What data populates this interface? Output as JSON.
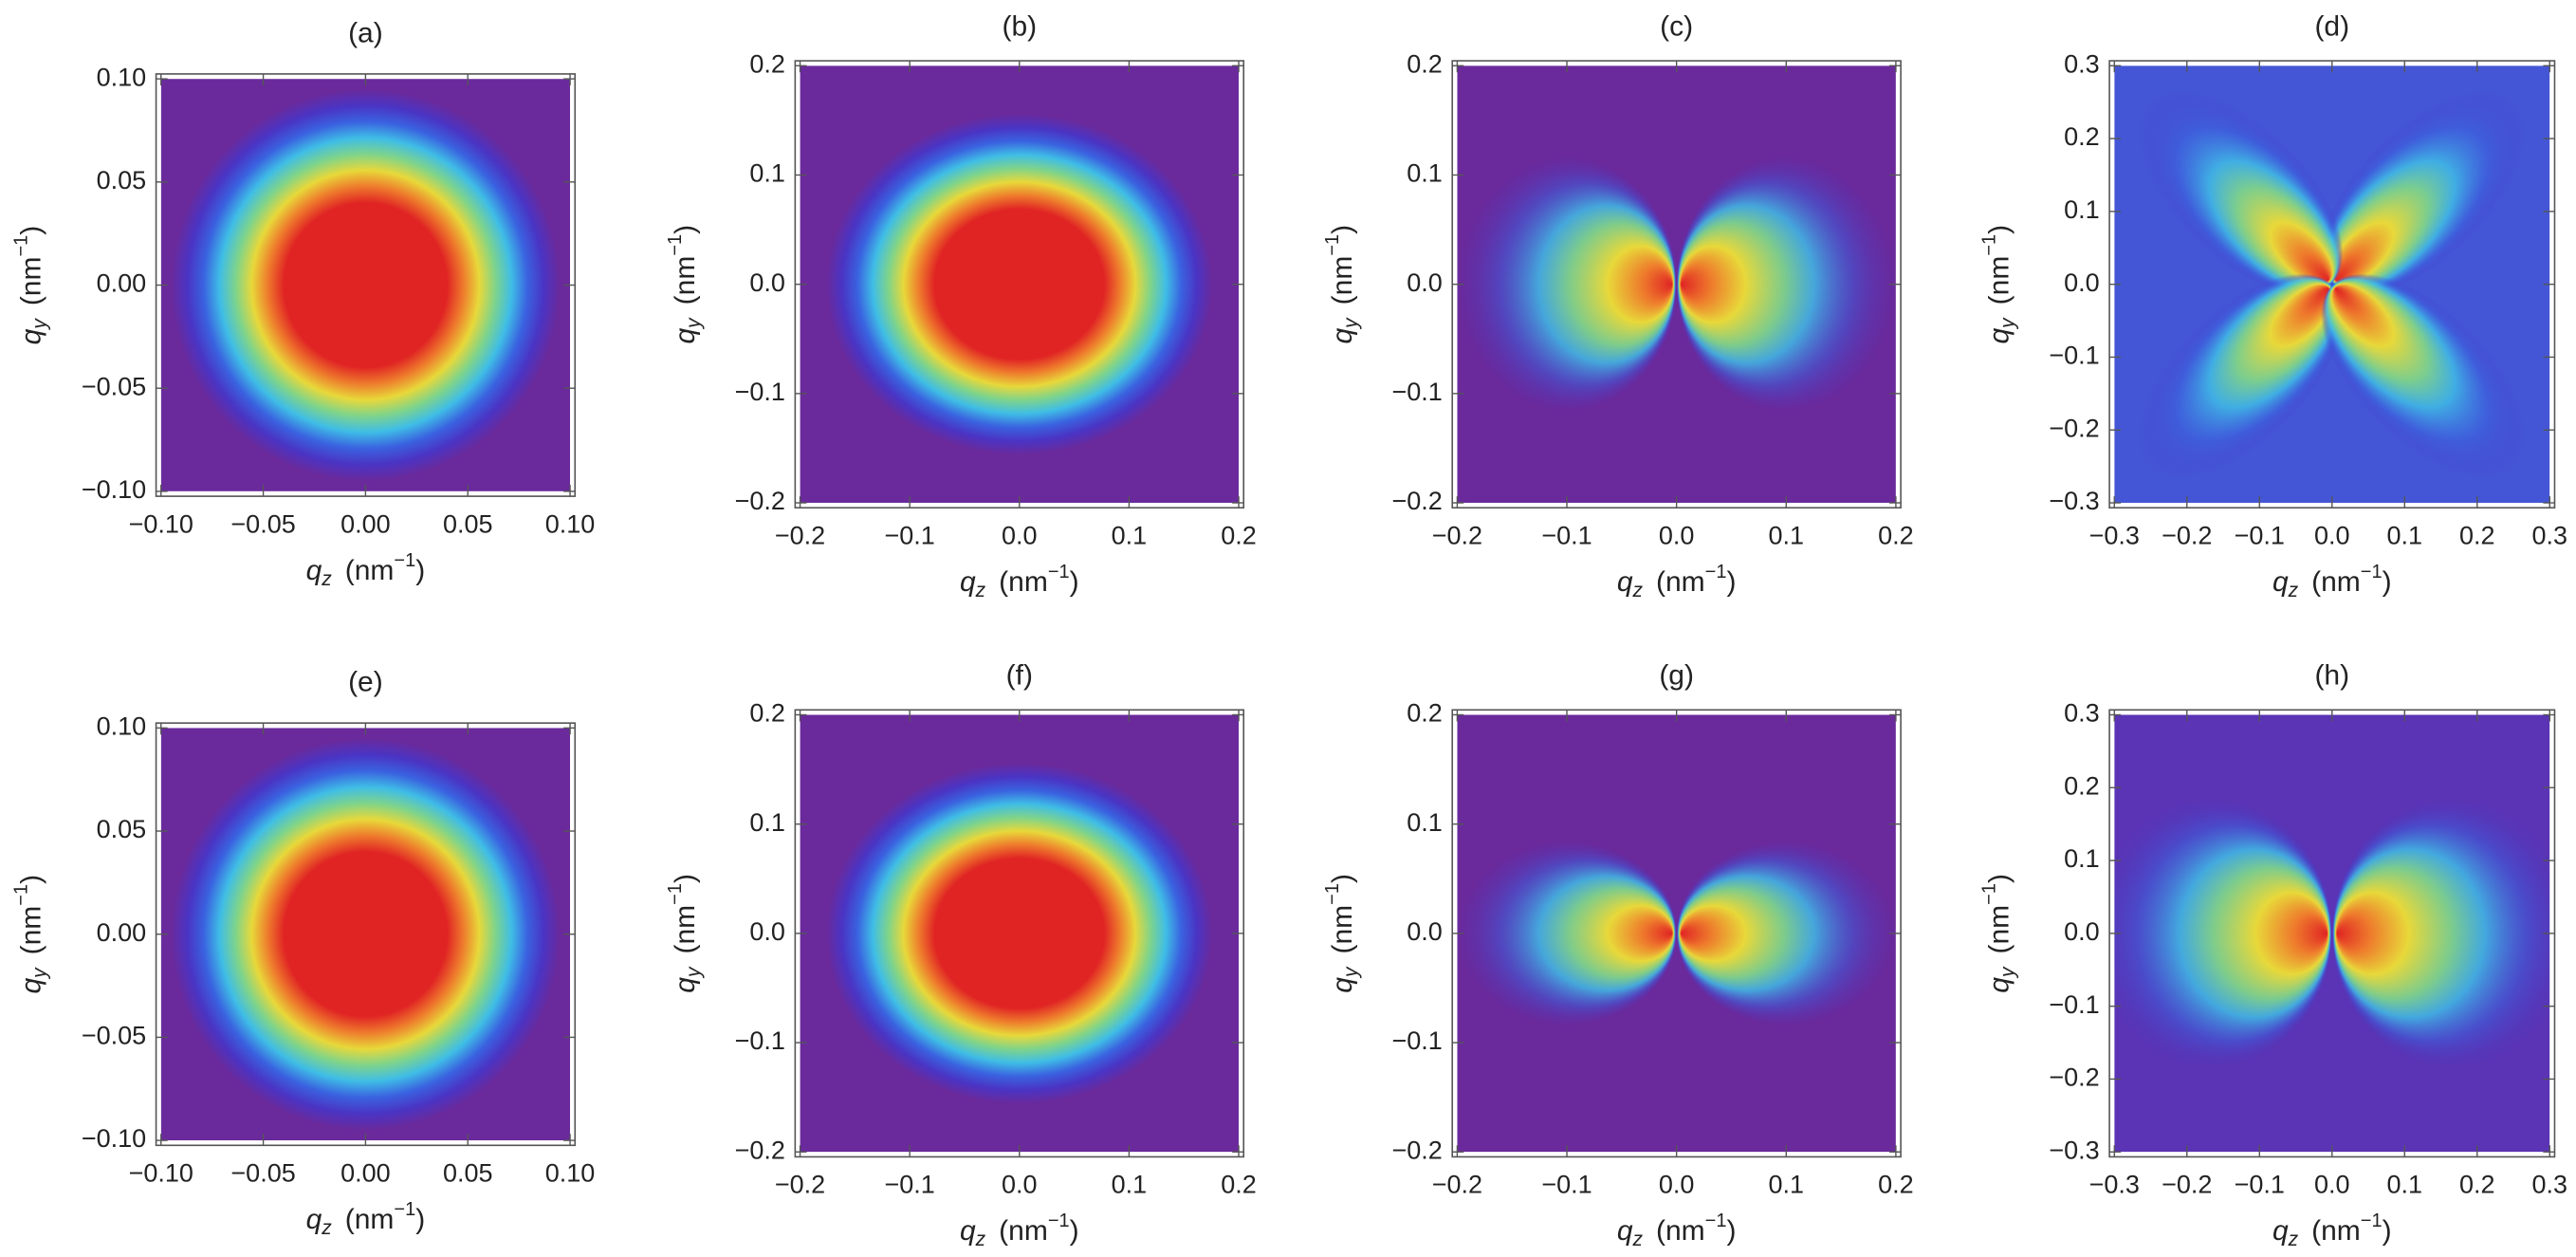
{
  "chart_data": [
    {
      "type": "density",
      "title": "(a)",
      "xlabel": {
        "symbol": "q",
        "subscript": "z",
        "unit": "(nm",
        "exponent": "−1",
        "close": ")"
      },
      "ylabel": {
        "symbol": "q",
        "subscript": "y",
        "unit": "(nm",
        "exponent": "−1",
        "close": ")"
      },
      "xlim": [
        -0.1,
        0.1
      ],
      "ylim": [
        -0.1,
        0.1
      ],
      "xticks": [
        {
          "value": -0.1,
          "label": "−0.10"
        },
        {
          "value": -0.05,
          "label": "−0.05"
        },
        {
          "value": 0,
          "label": "0.00"
        },
        {
          "value": 0.05,
          "label": "0.05"
        },
        {
          "value": 0.1,
          "label": "0.10"
        }
      ],
      "yticks": [
        {
          "value": -0.1,
          "label": "−0.10"
        },
        {
          "value": -0.05,
          "label": "−0.05"
        },
        {
          "value": 0,
          "label": "0.00"
        },
        {
          "value": 0.05,
          "label": "0.05"
        },
        {
          "value": 0.1,
          "label": "0.10"
        }
      ]
    },
    {
      "type": "density",
      "title": "(b)",
      "xlabel": {
        "symbol": "q",
        "subscript": "z",
        "unit": "(nm",
        "exponent": "−1",
        "close": ")"
      },
      "ylabel": {
        "symbol": "q",
        "subscript": "y",
        "unit": "(nm",
        "exponent": "−1",
        "close": ")"
      },
      "xlim": [
        -0.2,
        0.2
      ],
      "ylim": [
        -0.2,
        0.2
      ],
      "xticks": [
        {
          "value": -0.2,
          "label": "−0.2"
        },
        {
          "value": -0.1,
          "label": "−0.1"
        },
        {
          "value": 0,
          "label": "0.0"
        },
        0.1,
        0.2
      ],
      "yticks": [
        {
          "value": -0.2,
          "label": "−0.2"
        },
        {
          "value": -0.1,
          "label": "−0.1"
        },
        {
          "value": 0,
          "label": "0.0"
        },
        0.1,
        0.2
      ]
    },
    {
      "type": "density",
      "title": "(c)",
      "xlabel": {
        "symbol": "q",
        "subscript": "z",
        "unit": "(nm",
        "exponent": "−1",
        "close": ")"
      },
      "ylabel": {
        "symbol": "q",
        "subscript": "y",
        "unit": "(nm",
        "exponent": "−1",
        "close": ")"
      },
      "xlim": [
        -0.2,
        0.2
      ],
      "ylim": [
        -0.2,
        0.2
      ],
      "xticks": [
        {
          "value": -0.2,
          "label": "−0.2"
        },
        {
          "value": -0.1,
          "label": "−0.1"
        },
        {
          "value": 0,
          "label": "0.0"
        },
        0.1,
        0.2
      ],
      "yticks": [
        {
          "value": -0.2,
          "label": "−0.2"
        },
        {
          "value": -0.1,
          "label": "−0.1"
        },
        {
          "value": 0,
          "label": "0.0"
        },
        0.1,
        0.2
      ]
    },
    {
      "type": "density",
      "title": "(d)",
      "xlabel": {
        "symbol": "q",
        "subscript": "z",
        "unit": "(nm",
        "exponent": "−1",
        "close": ")"
      },
      "ylabel": {
        "symbol": "q",
        "subscript": "y",
        "unit": "(nm",
        "exponent": "−1",
        "close": ")"
      },
      "xlim": [
        -0.3,
        0.3
      ],
      "ylim": [
        -0.3,
        0.3
      ],
      "xticks": [
        {
          "value": -0.3,
          "label": "−0.3"
        },
        {
          "value": -0.2,
          "label": "−0.2"
        },
        {
          "value": -0.1,
          "label": "−0.1"
        },
        {
          "value": 0,
          "label": "0.0"
        },
        0.1,
        0.2,
        0.3
      ],
      "yticks": [
        {
          "value": -0.3,
          "label": "−0.3"
        },
        {
          "value": -0.2,
          "label": "−0.2"
        },
        {
          "value": -0.1,
          "label": "−0.1"
        },
        {
          "value": 0,
          "label": "0.0"
        },
        0.1,
        0.2,
        0.3
      ]
    },
    {
      "type": "density",
      "title": "(e)",
      "xlabel": {
        "symbol": "q",
        "subscript": "z",
        "unit": "(nm",
        "exponent": "−1",
        "close": ")"
      },
      "ylabel": {
        "symbol": "q",
        "subscript": "y",
        "unit": "(nm",
        "exponent": "−1",
        "close": ")"
      },
      "xlim": [
        -0.1,
        0.1
      ],
      "ylim": [
        -0.1,
        0.1
      ],
      "xticks": [
        {
          "value": -0.1,
          "label": "−0.10"
        },
        {
          "value": -0.05,
          "label": "−0.05"
        },
        {
          "value": 0,
          "label": "0.00"
        },
        {
          "value": 0.05,
          "label": "0.05"
        },
        {
          "value": 0.1,
          "label": "0.10"
        }
      ],
      "yticks": [
        {
          "value": -0.1,
          "label": "−0.10"
        },
        {
          "value": -0.05,
          "label": "−0.05"
        },
        {
          "value": 0,
          "label": "0.00"
        },
        {
          "value": 0.05,
          "label": "0.05"
        },
        {
          "value": 0.1,
          "label": "0.10"
        }
      ]
    },
    {
      "type": "density",
      "title": "(f)",
      "xlabel": {
        "symbol": "q",
        "subscript": "z",
        "unit": "(nm",
        "exponent": "−1",
        "close": ")"
      },
      "ylabel": {
        "symbol": "q",
        "subscript": "y",
        "unit": "(nm",
        "exponent": "−1",
        "close": ")"
      },
      "xlim": [
        -0.2,
        0.2
      ],
      "ylim": [
        -0.2,
        0.2
      ],
      "xticks": [
        {
          "value": -0.2,
          "label": "−0.2"
        },
        {
          "value": -0.1,
          "label": "−0.1"
        },
        {
          "value": 0,
          "label": "0.0"
        },
        0.1,
        0.2
      ],
      "yticks": [
        {
          "value": -0.2,
          "label": "−0.2"
        },
        {
          "value": -0.1,
          "label": "−0.1"
        },
        {
          "value": 0,
          "label": "0.0"
        },
        0.1,
        0.2
      ]
    },
    {
      "type": "density",
      "title": "(g)",
      "xlabel": {
        "symbol": "q",
        "subscript": "z",
        "unit": "(nm",
        "exponent": "−1",
        "close": ")"
      },
      "ylabel": {
        "symbol": "q",
        "subscript": "y",
        "unit": "(nm",
        "exponent": "−1",
        "close": ")"
      },
      "xlim": [
        -0.2,
        0.2
      ],
      "ylim": [
        -0.2,
        0.2
      ],
      "xticks": [
        {
          "value": -0.2,
          "label": "−0.2"
        },
        {
          "value": -0.1,
          "label": "−0.1"
        },
        {
          "value": 0,
          "label": "0.0"
        },
        0.1,
        0.2
      ],
      "yticks": [
        {
          "value": -0.2,
          "label": "−0.2"
        },
        {
          "value": -0.1,
          "label": "−0.1"
        },
        {
          "value": 0,
          "label": "0.0"
        },
        0.1,
        0.2
      ]
    },
    {
      "type": "density",
      "title": "(h)",
      "xlabel": {
        "symbol": "q",
        "subscript": "z",
        "unit": "(nm",
        "exponent": "−1",
        "close": ")"
      },
      "ylabel": {
        "symbol": "q",
        "subscript": "y",
        "unit": "(nm",
        "exponent": "−1",
        "close": ")"
      },
      "xlim": [
        -0.3,
        0.3
      ],
      "ylim": [
        -0.3,
        0.3
      ],
      "xticks": [
        {
          "value": -0.3,
          "label": "−0.3"
        },
        {
          "value": -0.2,
          "label": "−0.2"
        },
        {
          "value": -0.1,
          "label": "−0.1"
        },
        {
          "value": 0,
          "label": "0.0"
        },
        0.1,
        0.2,
        0.3
      ],
      "yticks": [
        {
          "value": -0.3,
          "label": "−0.3"
        },
        {
          "value": -0.2,
          "label": "−0.2"
        },
        {
          "value": -0.1,
          "label": "−0.1"
        },
        {
          "value": 0,
          "label": "0.0"
        },
        0.1,
        0.2,
        0.3
      ]
    }
  ]
}
